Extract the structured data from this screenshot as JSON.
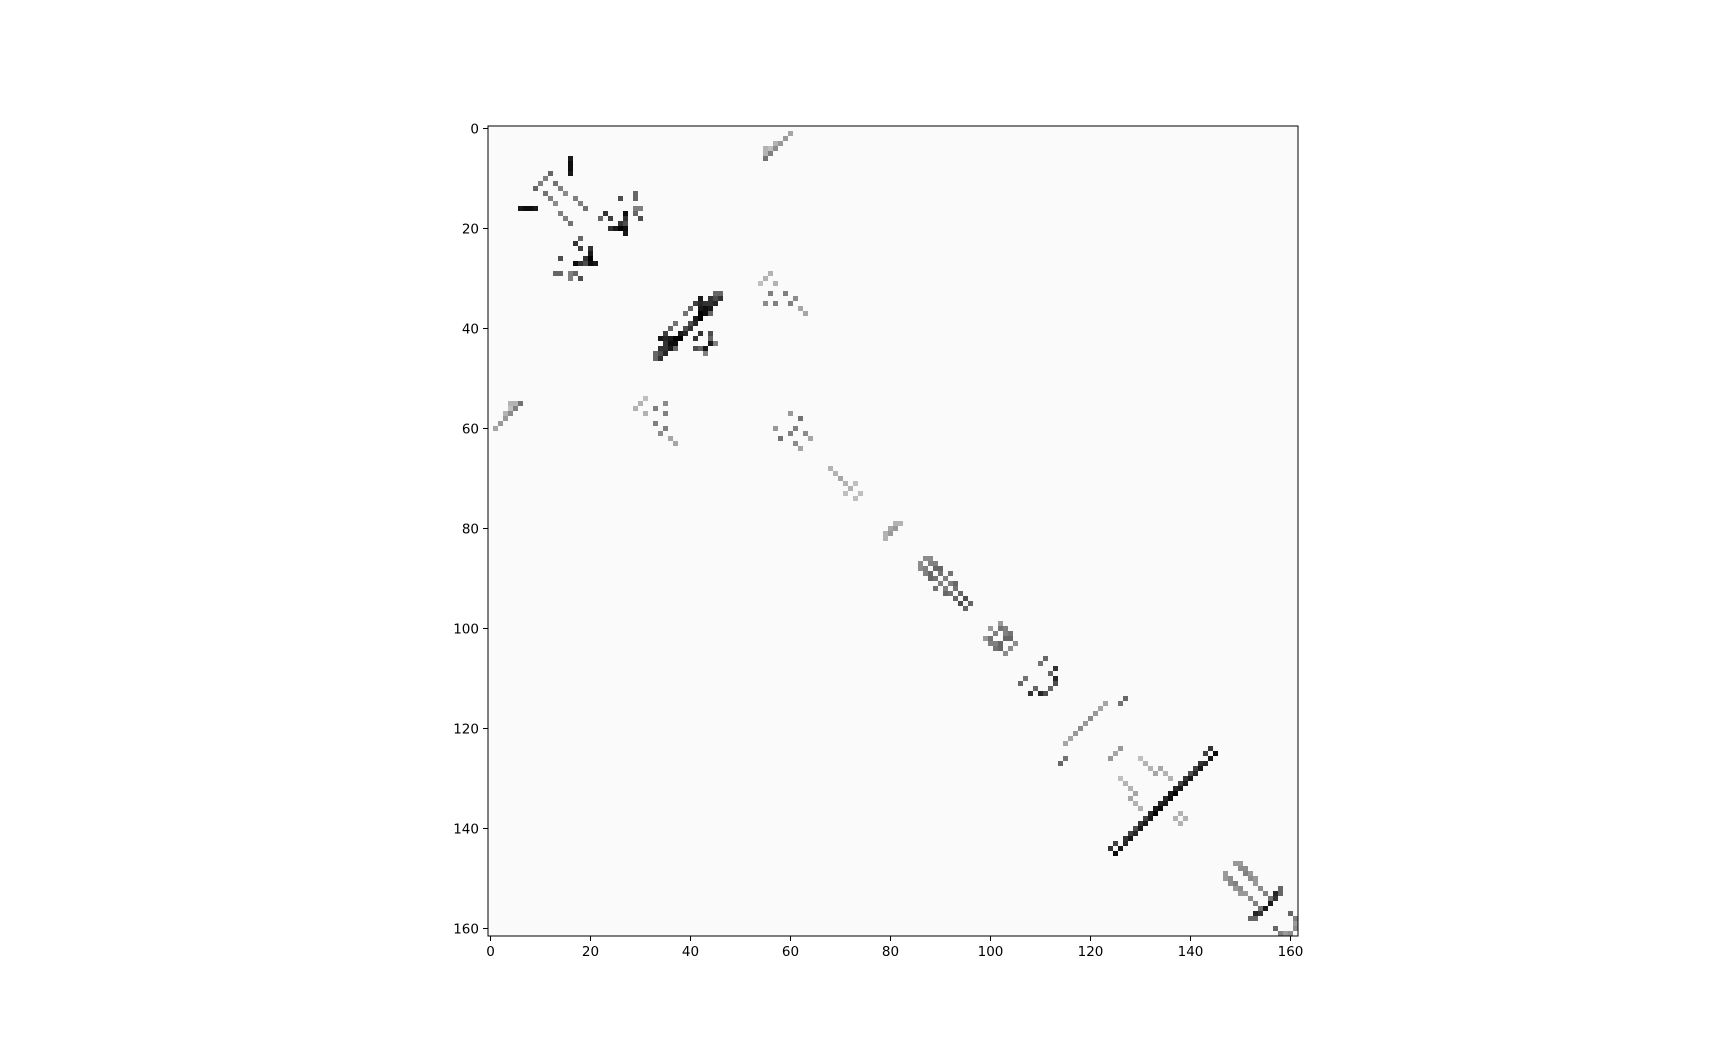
{
  "chart_data": {
    "type": "heatmap",
    "title": "",
    "xlabel": "",
    "ylabel": "",
    "colormap": "Greys",
    "grid": false,
    "legend": "none",
    "n_rows": 162,
    "n_cols": 162,
    "xlim": [
      -0.5,
      161.5
    ],
    "ylim": [
      161.5,
      -0.5
    ],
    "x_ticks": [
      0,
      20,
      40,
      60,
      80,
      100,
      120,
      140,
      160
    ],
    "y_ticks": [
      0,
      20,
      40,
      60,
      80,
      100,
      120,
      140,
      160
    ],
    "x_tick_labels": [
      "0",
      "20",
      "40",
      "60",
      "80",
      "100",
      "120",
      "140",
      "160"
    ],
    "y_tick_labels": [
      "0",
      "20",
      "40",
      "60",
      "80",
      "100",
      "120",
      "140",
      "160"
    ],
    "cells_symmetric": true,
    "background_value": 0.02,
    "cells": [
      [
        16,
        6,
        0.9
      ],
      [
        16,
        8,
        0.95
      ],
      [
        6,
        16,
        0.9
      ],
      [
        8,
        16,
        0.95
      ],
      [
        7,
        16,
        0.95
      ],
      [
        9,
        16,
        0.9
      ],
      [
        16,
        7,
        0.95
      ],
      [
        16,
        9,
        0.9
      ],
      [
        26,
        20,
        1.0
      ],
      [
        27,
        20,
        0.95
      ],
      [
        25,
        20,
        0.9
      ],
      [
        27,
        19,
        0.7
      ],
      [
        26,
        19,
        0.6
      ],
      [
        23,
        17,
        0.8
      ],
      [
        22,
        18,
        0.6
      ],
      [
        27,
        17,
        0.9
      ],
      [
        29,
        17,
        0.6
      ],
      [
        29,
        13,
        0.6
      ],
      [
        30,
        16,
        0.5
      ],
      [
        17,
        27,
        0.95
      ],
      [
        18,
        27,
        0.8
      ],
      [
        18,
        30,
        0.7
      ],
      [
        14,
        29,
        0.6
      ],
      [
        16,
        29,
        0.5
      ],
      [
        14,
        26,
        0.7
      ],
      [
        20,
        26,
        1.0
      ],
      [
        21,
        27,
        0.9
      ],
      [
        19,
        26,
        0.8
      ],
      [
        20,
        25,
        0.85
      ],
      [
        18,
        24,
        0.75
      ],
      [
        20,
        24,
        0.8
      ],
      [
        12,
        9,
        0.6
      ],
      [
        11,
        10,
        0.5
      ],
      [
        13,
        11,
        0.55
      ],
      [
        14,
        12,
        0.5
      ],
      [
        15,
        13,
        0.45
      ],
      [
        17,
        14,
        0.5
      ],
      [
        18,
        15,
        0.5
      ],
      [
        19,
        16,
        0.55
      ],
      [
        9,
        12,
        0.6
      ],
      [
        10,
        11,
        0.5
      ],
      [
        36,
        43,
        0.95
      ],
      [
        37,
        42,
        1.0
      ],
      [
        38,
        42,
        0.9
      ],
      [
        39,
        41,
        0.85
      ],
      [
        40,
        40,
        0.8
      ],
      [
        41,
        39,
        0.8
      ],
      [
        42,
        38,
        1.0
      ],
      [
        43,
        37,
        0.95
      ],
      [
        44,
        36,
        0.9
      ],
      [
        45,
        35,
        0.85
      ],
      [
        46,
        34,
        0.8
      ],
      [
        35,
        43,
        0.8
      ],
      [
        36,
        44,
        0.9
      ],
      [
        37,
        43,
        0.85
      ],
      [
        38,
        41,
        0.9
      ],
      [
        39,
        40,
        0.7
      ],
      [
        41,
        38,
        0.85
      ],
      [
        42,
        37,
        0.95
      ],
      [
        43,
        36,
        0.9
      ],
      [
        44,
        35,
        0.8
      ],
      [
        45,
        34,
        0.7
      ],
      [
        46,
        33,
        0.6
      ],
      [
        34,
        42,
        0.9
      ],
      [
        34,
        44,
        0.8
      ],
      [
        33,
        45,
        0.6
      ],
      [
        35,
        42,
        0.85
      ],
      [
        36,
        42,
        0.9
      ],
      [
        44,
        37,
        0.6
      ],
      [
        43,
        35,
        0.7
      ],
      [
        42,
        34,
        0.8
      ],
      [
        41,
        35,
        0.75
      ],
      [
        40,
        36,
        0.6
      ],
      [
        39,
        37,
        0.55
      ],
      [
        41,
        44,
        0.7
      ],
      [
        43,
        44,
        0.9
      ],
      [
        42,
        41,
        0.8
      ],
      [
        44,
        42,
        0.6
      ],
      [
        43,
        45,
        0.5
      ],
      [
        55,
        30,
        0.3
      ],
      [
        56,
        29,
        0.3
      ],
      [
        57,
        31,
        0.3
      ],
      [
        54,
        31,
        0.25
      ],
      [
        56,
        5,
        0.5
      ],
      [
        55,
        6,
        0.55
      ],
      [
        57,
        4,
        0.45
      ],
      [
        58,
        3,
        0.4
      ],
      [
        59,
        2,
        0.4
      ],
      [
        60,
        1,
        0.35
      ],
      [
        60,
        57,
        0.4
      ],
      [
        61,
        60,
        0.5
      ],
      [
        62,
        58,
        0.55
      ],
      [
        63,
        61,
        0.45
      ],
      [
        64,
        62,
        0.35
      ],
      [
        55,
        4,
        0.3
      ],
      [
        5,
        55,
        0.3
      ],
      [
        3,
        57,
        0.3
      ],
      [
        4,
        56,
        0.25
      ],
      [
        35,
        60,
        0.5
      ],
      [
        34,
        61,
        0.45
      ],
      [
        33,
        59,
        0.5
      ],
      [
        36,
        62,
        0.35
      ],
      [
        37,
        63,
        0.35
      ],
      [
        56,
        33,
        0.5
      ],
      [
        57,
        35,
        0.5
      ],
      [
        55,
        35,
        0.45
      ],
      [
        68,
        68,
        0.3
      ],
      [
        69,
        69,
        0.3
      ],
      [
        70,
        70,
        0.35
      ],
      [
        71,
        71,
        0.3
      ],
      [
        72,
        72,
        0.3
      ],
      [
        73,
        71,
        0.25
      ],
      [
        74,
        73,
        0.25
      ],
      [
        80,
        80,
        0.35
      ],
      [
        81,
        80,
        0.4
      ],
      [
        82,
        79,
        0.3
      ],
      [
        79,
        81,
        0.3
      ],
      [
        87,
        86,
        0.45
      ],
      [
        88,
        87,
        0.5
      ],
      [
        89,
        88,
        0.6
      ],
      [
        90,
        89,
        0.55
      ],
      [
        91,
        90,
        0.5
      ],
      [
        92,
        91,
        0.5
      ],
      [
        93,
        92,
        0.55
      ],
      [
        94,
        93,
        0.6
      ],
      [
        95,
        94,
        0.7
      ],
      [
        96,
        95,
        0.6
      ],
      [
        88,
        90,
        0.6
      ],
      [
        89,
        92,
        0.55
      ],
      [
        91,
        93,
        0.6
      ],
      [
        86,
        88,
        0.45
      ],
      [
        87,
        89,
        0.5
      ],
      [
        101,
        101,
        0.5
      ],
      [
        102,
        100,
        0.55
      ],
      [
        103,
        102,
        0.6
      ],
      [
        104,
        101,
        0.55
      ],
      [
        100,
        103,
        0.5
      ],
      [
        102,
        104,
        0.6
      ],
      [
        101,
        103,
        0.5
      ],
      [
        103,
        100,
        0.5
      ],
      [
        104,
        104,
        0.45
      ],
      [
        100,
        100,
        0.4
      ],
      [
        105,
        103,
        0.45
      ],
      [
        99,
        102,
        0.4
      ],
      [
        108,
        113,
        0.8
      ],
      [
        110,
        113,
        0.85
      ],
      [
        112,
        112,
        0.6
      ],
      [
        113,
        111,
        0.7
      ],
      [
        112,
        109,
        0.6
      ],
      [
        110,
        107,
        0.55
      ],
      [
        111,
        106,
        0.6
      ],
      [
        113,
        108,
        0.8
      ],
      [
        113,
        110,
        0.85
      ],
      [
        109,
        112,
        0.6
      ],
      [
        107,
        110,
        0.55
      ],
      [
        119,
        119,
        0.4
      ],
      [
        120,
        118,
        0.45
      ],
      [
        121,
        117,
        0.4
      ],
      [
        122,
        116,
        0.35
      ],
      [
        123,
        115,
        0.35
      ],
      [
        127,
        114,
        0.6
      ],
      [
        126,
        115,
        0.55
      ],
      [
        115,
        126,
        0.5
      ],
      [
        114,
        127,
        0.55
      ],
      [
        126,
        124,
        0.4
      ],
      [
        124,
        126,
        0.4
      ],
      [
        125,
        125,
        0.35
      ],
      [
        145,
        125,
        0.95
      ],
      [
        144,
        126,
        0.9
      ],
      [
        143,
        127,
        0.85
      ],
      [
        142,
        128,
        0.9
      ],
      [
        141,
        129,
        0.85
      ],
      [
        140,
        130,
        0.9
      ],
      [
        139,
        131,
        0.9
      ],
      [
        138,
        132,
        0.85
      ],
      [
        137,
        133,
        0.9
      ],
      [
        136,
        134,
        0.95
      ],
      [
        135,
        135,
        0.9
      ],
      [
        134,
        136,
        0.95
      ],
      [
        133,
        137,
        1.0
      ],
      [
        132,
        138,
        0.9
      ],
      [
        131,
        139,
        0.85
      ],
      [
        130,
        140,
        0.8
      ],
      [
        129,
        141,
        0.75
      ],
      [
        128,
        142,
        0.7
      ],
      [
        127,
        143,
        0.7
      ],
      [
        126,
        144,
        0.65
      ],
      [
        125,
        145,
        0.6
      ],
      [
        144,
        124,
        0.8
      ],
      [
        143,
        125,
        0.75
      ],
      [
        142,
        127,
        0.8
      ],
      [
        141,
        128,
        0.75
      ],
      [
        140,
        129,
        0.7
      ],
      [
        139,
        130,
        0.8
      ],
      [
        138,
        131,
        0.75
      ],
      [
        137,
        132,
        0.8
      ],
      [
        136,
        133,
        0.85
      ],
      [
        135,
        134,
        0.8
      ],
      [
        134,
        135,
        0.85
      ],
      [
        133,
        136,
        0.9
      ],
      [
        132,
        137,
        0.85
      ],
      [
        131,
        138,
        0.75
      ],
      [
        130,
        139,
        0.7
      ],
      [
        129,
        140,
        0.65
      ],
      [
        128,
        141,
        0.6
      ],
      [
        134,
        128,
        0.35
      ],
      [
        133,
        129,
        0.35
      ],
      [
        132,
        128,
        0.3
      ],
      [
        131,
        127,
        0.3
      ],
      [
        130,
        126,
        0.25
      ],
      [
        135,
        129,
        0.3
      ],
      [
        136,
        130,
        0.3
      ],
      [
        137,
        138,
        0.3
      ],
      [
        138,
        139,
        0.3
      ],
      [
        149,
        147,
        0.4
      ],
      [
        150,
        148,
        0.45
      ],
      [
        151,
        149,
        0.5
      ],
      [
        152,
        150,
        0.45
      ],
      [
        153,
        151,
        0.4
      ],
      [
        154,
        152,
        0.45
      ],
      [
        155,
        153,
        0.5
      ],
      [
        156,
        154,
        0.55
      ],
      [
        147,
        150,
        0.4
      ],
      [
        148,
        151,
        0.45
      ],
      [
        149,
        152,
        0.4
      ],
      [
        150,
        153,
        0.4
      ],
      [
        157,
        153,
        0.85
      ],
      [
        155,
        156,
        0.9
      ],
      [
        156,
        155,
        0.85
      ],
      [
        158,
        152,
        0.6
      ],
      [
        154,
        157,
        0.8
      ],
      [
        153,
        158,
        0.6
      ],
      [
        160,
        157,
        0.6
      ],
      [
        161,
        160,
        0.45
      ],
      [
        159,
        161,
        0.4
      ],
      [
        161,
        158,
        0.5
      ]
    ]
  }
}
